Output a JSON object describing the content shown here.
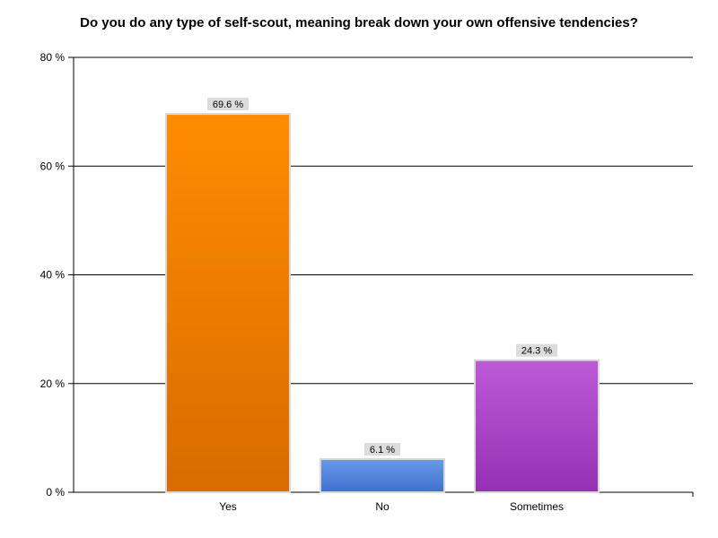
{
  "chart_data": {
    "type": "bar",
    "title": "Do you do any type of self-scout, meaning break down your own offensive tendencies?",
    "categories": [
      "Yes",
      "No",
      "Sometimes"
    ],
    "values": [
      69.6,
      6.1,
      24.3
    ],
    "data_labels": [
      "69.6 %",
      "6.1 %",
      "24.3 %"
    ],
    "ylim": [
      0,
      80
    ],
    "yticks": [
      0,
      20,
      40,
      60,
      80
    ],
    "ytick_labels": [
      "0 %",
      "20 %",
      "40 %",
      "60 %",
      "80 %"
    ],
    "xlabel": "",
    "ylabel": "",
    "grid": true,
    "legend": "none",
    "bar_colors": [
      {
        "top": "#ff8c00",
        "bottom": "#d96b00"
      },
      {
        "top": "#6a9ae8",
        "bottom": "#3f70cf"
      },
      {
        "top": "#bd5ad8",
        "bottom": "#9530b4"
      }
    ],
    "bar_border_color": "#d8d8d8",
    "label_bg_color": "#dcdcdc"
  }
}
